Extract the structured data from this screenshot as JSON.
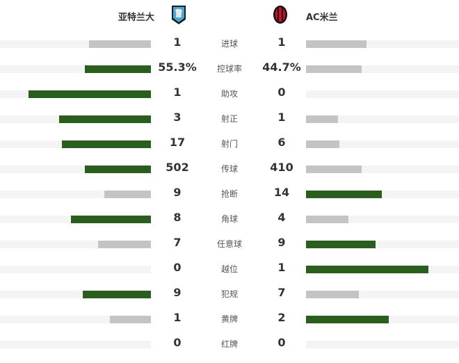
{
  "header": {
    "home_team": "亚特兰大",
    "away_team": "AC米兰",
    "home_logo": "atalanta-crest",
    "away_logo": "ac-milan-crest"
  },
  "colors": {
    "leader": "#2a5e1e",
    "trailer": "#c4c4c4",
    "track": "#f4f4f4"
  },
  "stats": [
    {
      "label": "进球",
      "home": "1",
      "away": "1",
      "home_fill": 0.41,
      "away_fill": 0.4,
      "leader": "none"
    },
    {
      "label": "控球率",
      "home": "55.3%",
      "away": "44.7%",
      "home_fill": 0.44,
      "away_fill": 0.37,
      "leader": "home"
    },
    {
      "label": "助攻",
      "home": "1",
      "away": "0",
      "home_fill": 0.81,
      "away_fill": 0,
      "leader": "home"
    },
    {
      "label": "射正",
      "home": "3",
      "away": "1",
      "home_fill": 0.61,
      "away_fill": 0.21,
      "leader": "home"
    },
    {
      "label": "射门",
      "home": "17",
      "away": "6",
      "home_fill": 0.59,
      "away_fill": 0.22,
      "leader": "home"
    },
    {
      "label": "传球",
      "home": "502",
      "away": "410",
      "home_fill": 0.44,
      "away_fill": 0.37,
      "leader": "home"
    },
    {
      "label": "抢断",
      "home": "9",
      "away": "14",
      "home_fill": 0.31,
      "away_fill": 0.5,
      "leader": "away"
    },
    {
      "label": "角球",
      "home": "8",
      "away": "4",
      "home_fill": 0.53,
      "away_fill": 0.28,
      "leader": "home"
    },
    {
      "label": "任意球",
      "home": "7",
      "away": "9",
      "home_fill": 0.35,
      "away_fill": 0.46,
      "leader": "away"
    },
    {
      "label": "越位",
      "home": "0",
      "away": "1",
      "home_fill": 0,
      "away_fill": 0.81,
      "leader": "away"
    },
    {
      "label": "犯规",
      "home": "9",
      "away": "7",
      "home_fill": 0.45,
      "away_fill": 0.35,
      "leader": "home"
    },
    {
      "label": "黄牌",
      "home": "1",
      "away": "2",
      "home_fill": 0.27,
      "away_fill": 0.55,
      "leader": "away"
    },
    {
      "label": "红牌",
      "home": "0",
      "away": "0",
      "home_fill": 0,
      "away_fill": 0,
      "leader": "none"
    }
  ]
}
